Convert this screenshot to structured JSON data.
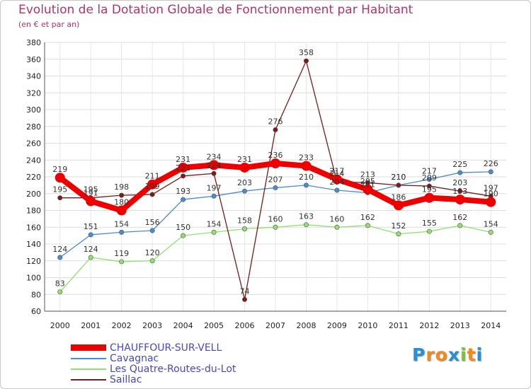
{
  "chart_data": {
    "type": "line",
    "title": "Evolution de la Dotation Globale de Fonctionnement par Habitant",
    "subtitle": "(en € et par an)",
    "xlabel": "",
    "ylabel": "",
    "x": [
      "2000",
      "2001",
      "2002",
      "2003",
      "2004",
      "2005",
      "2006",
      "2007",
      "2008",
      "2009",
      "2010",
      "2011",
      "2012",
      "2013",
      "2014"
    ],
    "ylim": [
      60,
      380
    ],
    "yticks": [
      60,
      80,
      100,
      120,
      140,
      160,
      180,
      200,
      220,
      240,
      260,
      280,
      300,
      320,
      340,
      360,
      380
    ],
    "grid": true,
    "legend_position": "bottom-left",
    "series": [
      {
        "name": "CHAUFFOUR-SUR-VELL",
        "color": "#ee0000",
        "emphasis": true,
        "values": [
          219,
          191,
          180,
          211,
          231,
          234,
          231,
          236,
          233,
          217,
          205,
          186,
          195,
          193,
          190
        ]
      },
      {
        "name": "Cavagnac",
        "color": "#4a8cd0",
        "values": [
          124,
          151,
          154,
          156,
          193,
          197,
          203,
          207,
          210,
          204,
          201,
          210,
          217,
          225,
          226
        ]
      },
      {
        "name": "Les Quatre-Routes-du-Lot",
        "color": "#90e070",
        "values": [
          83,
          124,
          119,
          120,
          150,
          154,
          158,
          160,
          163,
          160,
          162,
          152,
          155,
          162,
          154
        ]
      },
      {
        "name": "Saillac",
        "color": "#7a1a1a",
        "values": [
          195,
          195,
          198,
          199,
          221,
          224,
          74,
          276,
          358,
          214,
          213,
          210,
          209,
          203,
          197
        ]
      }
    ]
  },
  "logo": {
    "text": "Proxiti",
    "letters": [
      {
        "ch": "P",
        "color": "#2b8fd6"
      },
      {
        "ch": "r",
        "color": "#f08a1c"
      },
      {
        "ch": "o",
        "color": "#f08a1c"
      },
      {
        "ch": "x",
        "color": "#2b8fd6"
      },
      {
        "ch": "i",
        "color": "#7cc242"
      },
      {
        "ch": "t",
        "color": "#f08a1c"
      },
      {
        "ch": "i",
        "color": "#2b8fd6"
      }
    ]
  }
}
